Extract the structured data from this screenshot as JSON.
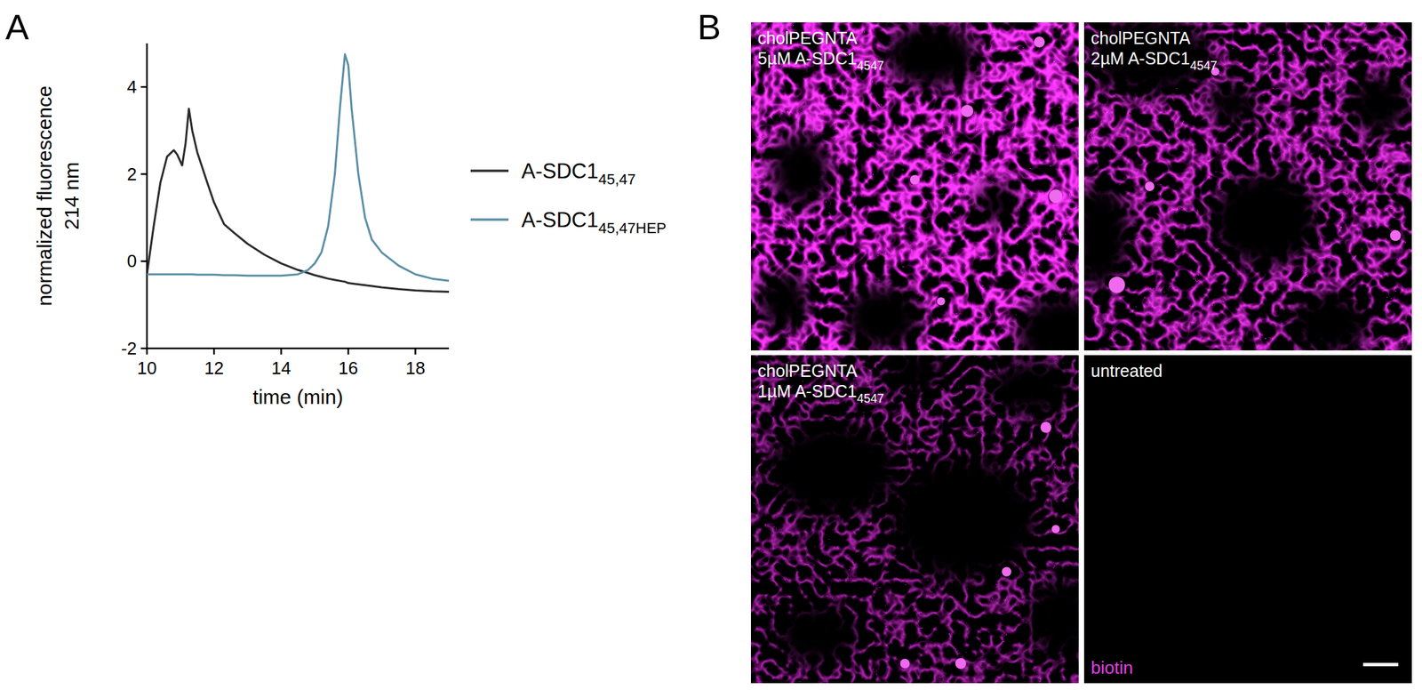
{
  "panel_labels": [
    "A",
    "B"
  ],
  "chart_data": {
    "type": "line",
    "xlabel": "time (min)",
    "ylabel": [
      "normalized fluorescence",
      "214 nm"
    ],
    "x": [
      10,
      10.2,
      10.4,
      10.6,
      10.8,
      10.9,
      11.05,
      11.15,
      11.25,
      11.35,
      11.5,
      11.8,
      12,
      12.3,
      12.6,
      13,
      13.5,
      14,
      14.5,
      14.8,
      15,
      15.2,
      15.4,
      15.6,
      15.75,
      15.9,
      16,
      16.1,
      16.3,
      16.5,
      16.7,
      17,
      17.5,
      18,
      18.5,
      19
    ],
    "series": [
      {
        "name": "A-SDC1",
        "subscript": "45,47",
        "color": "#2b2b2b",
        "values": [
          -0.3,
          0.8,
          1.8,
          2.4,
          2.55,
          2.45,
          2.2,
          2.7,
          3.5,
          3.0,
          2.5,
          1.8,
          1.35,
          0.85,
          0.65,
          0.4,
          0.15,
          -0.05,
          -0.2,
          -0.27,
          -0.32,
          -0.36,
          -0.4,
          -0.43,
          -0.45,
          -0.47,
          -0.5,
          -0.51,
          -0.53,
          -0.55,
          -0.57,
          -0.6,
          -0.64,
          -0.67,
          -0.69,
          -0.7
        ]
      },
      {
        "name": "A-SDC1",
        "subscript": "45,47HEP",
        "color": "#5b8fa5",
        "values": [
          -0.3,
          -0.3,
          -0.3,
          -0.3,
          -0.3,
          -0.3,
          -0.3,
          -0.3,
          -0.3,
          -0.3,
          -0.31,
          -0.31,
          -0.31,
          -0.32,
          -0.32,
          -0.33,
          -0.33,
          -0.33,
          -0.3,
          -0.2,
          -0.05,
          0.2,
          0.8,
          2.0,
          3.5,
          4.75,
          4.5,
          3.5,
          2.0,
          1.0,
          0.5,
          0.2,
          -0.1,
          -0.3,
          -0.4,
          -0.45
        ]
      }
    ],
    "xlim": [
      10,
      19
    ],
    "xticks": [
      10,
      12,
      14,
      16,
      18
    ],
    "ylim": [
      -2,
      5
    ],
    "yticks": [
      -2,
      0,
      2,
      4
    ],
    "legend": "right",
    "grid": false
  },
  "images": {
    "tiles": [
      {
        "lines": [
          "cholPEGNTA",
          "5µM A-SDC1"
        ],
        "subscript": "4547"
      },
      {
        "lines": [
          "cholPEGNTA",
          "2µM A-SDC1"
        ],
        "subscript": "4547"
      },
      {
        "lines": [
          "cholPEGNTA",
          "1µM A-SDC1"
        ],
        "subscript": "4547"
      },
      {
        "lines": [
          "untreated"
        ]
      }
    ],
    "channel_label": "biotin"
  }
}
